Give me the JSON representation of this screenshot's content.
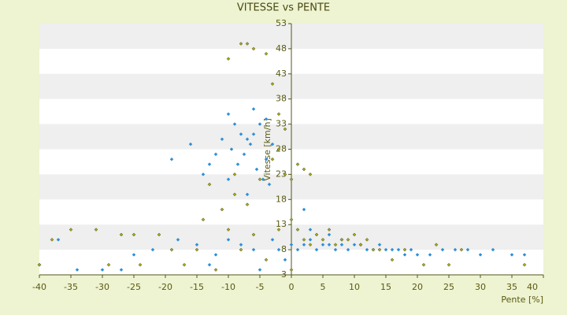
{
  "chart_data": {
    "type": "scatter",
    "title": "VITESSE vs PENTE",
    "x_label": "Pente [%]",
    "y_label": "Vitesse [km/h]",
    "xlim": [
      -40,
      40
    ],
    "xticks": [
      -40,
      -35,
      -30,
      -25,
      -20,
      -15,
      -10,
      -5,
      0,
      5,
      10,
      15,
      20,
      25,
      30,
      35,
      40
    ],
    "ylim": [
      3,
      53
    ],
    "yticks": [
      3,
      8,
      13,
      18,
      23,
      28,
      33,
      38,
      43,
      48,
      53
    ],
    "grid": true,
    "series": [
      {
        "color": "#2e8fd8",
        "x": [
          -10,
          -9,
          -8,
          -7,
          -6,
          -5,
          -4,
          -9.5,
          -8.5,
          -7.5,
          -6.5,
          -5.5,
          -4.5,
          -3.5,
          -11,
          -12,
          -13,
          -14,
          -16,
          -19,
          -10,
          -7,
          -6,
          -4,
          -3,
          -40,
          -37,
          -34,
          -30,
          -27,
          -25,
          -22,
          -18,
          -15,
          -13,
          -12,
          -10,
          -8,
          -6,
          -5,
          -3,
          -2,
          -1,
          0,
          1,
          2,
          3,
          4,
          5,
          6,
          7,
          8,
          9,
          10,
          11,
          12,
          13,
          14,
          15,
          16,
          17,
          18,
          19,
          20,
          22,
          24,
          26,
          28,
          30,
          32,
          35,
          37,
          2,
          3,
          6,
          8,
          4
        ],
        "y": [
          35,
          33,
          31,
          30,
          36,
          33,
          34,
          28,
          25,
          27,
          29,
          24,
          22,
          21,
          30,
          27,
          25,
          23,
          29,
          26,
          22,
          19,
          31,
          26,
          29,
          5,
          10,
          4,
          4,
          4,
          7,
          8,
          10,
          9,
          5,
          7,
          10,
          9,
          8,
          4,
          10,
          8,
          6,
          9,
          8,
          9,
          10,
          8,
          9,
          9,
          8,
          9,
          8,
          9,
          9,
          8,
          8,
          9,
          8,
          8,
          8,
          7,
          8,
          7,
          7,
          8,
          8,
          8,
          7,
          8,
          7,
          7,
          16,
          12,
          11,
          10,
          11
        ]
      },
      {
        "color": "#a4a820",
        "x": [
          -10,
          -8,
          -7,
          -6,
          -4,
          -3,
          -2,
          -1,
          -3,
          -5,
          -7,
          -9,
          -11,
          -13,
          -14,
          -9,
          -2,
          -1,
          0,
          1,
          2,
          3,
          -40,
          -38,
          -35,
          -31,
          -27,
          -25,
          -21,
          -19,
          -17,
          -15,
          -12,
          -10,
          -8,
          -6,
          -4,
          -2,
          0,
          1,
          2,
          3,
          4,
          5,
          6,
          7,
          8,
          9,
          10,
          11,
          12,
          13,
          14,
          16,
          18,
          21,
          23,
          25,
          27,
          37,
          0,
          -24,
          -29
        ],
        "y": [
          46,
          49,
          49,
          48,
          47,
          41,
          35,
          32,
          26,
          22,
          17,
          19,
          16,
          21,
          14,
          23,
          28,
          23,
          22,
          25,
          24,
          23,
          5,
          10,
          12,
          12,
          11,
          11,
          11,
          8,
          5,
          8,
          4,
          12,
          8,
          11,
          6,
          12,
          14,
          12,
          10,
          9,
          11,
          10,
          12,
          9,
          10,
          10,
          11,
          9,
          10,
          8,
          8,
          6,
          8,
          5,
          9,
          5,
          8,
          5,
          4,
          5,
          5
        ]
      }
    ]
  }
}
